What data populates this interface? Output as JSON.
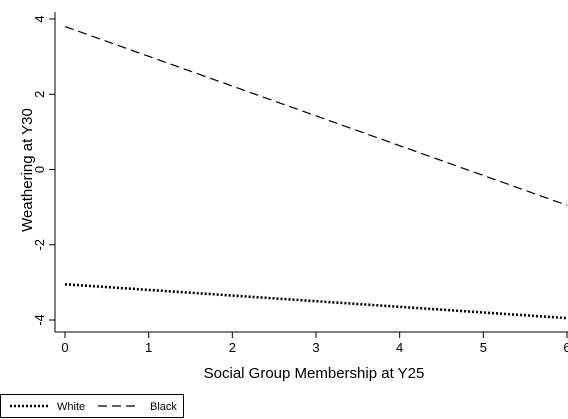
{
  "chart_data": {
    "type": "line",
    "xlabel": "Social Group Membership at Y25",
    "ylabel": "Weathering at Y30",
    "xlim": [
      0,
      6
    ],
    "ylim": [
      -4.2,
      4.4
    ],
    "xticks": [
      0,
      1,
      2,
      3,
      4,
      5,
      6
    ],
    "yticks": [
      -4,
      -2,
      0,
      2,
      4
    ],
    "grid": false,
    "legend_position": "bottom-left",
    "series": [
      {
        "name": "White",
        "style": "dotted",
        "x": [
          0,
          6
        ],
        "y": [
          -3.05,
          -3.95
        ],
        "color": "#000000"
      },
      {
        "name": "Black",
        "style": "dashed",
        "x": [
          0,
          6
        ],
        "y": [
          3.8,
          -0.95
        ],
        "color": "#000000"
      }
    ]
  }
}
